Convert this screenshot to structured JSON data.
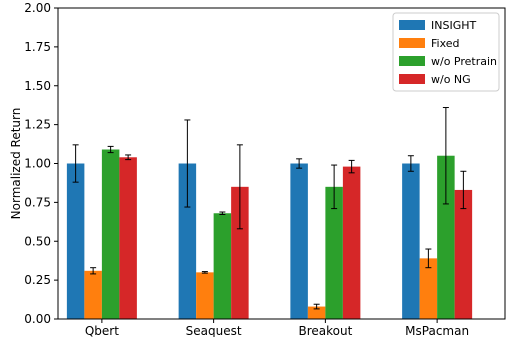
{
  "chart_data": {
    "type": "bar",
    "title": "",
    "xlabel": "",
    "ylabel": "Normalized Return",
    "ylim": [
      0,
      2.0
    ],
    "yticks": [
      "0.00",
      "0.25",
      "0.50",
      "0.75",
      "1.00",
      "1.25",
      "1.50",
      "1.75",
      "2.00"
    ],
    "categories": [
      "Qbert",
      "Seaquest",
      "Breakout",
      "MsPacman"
    ],
    "grid": false,
    "legend_position": "top-right",
    "series": [
      {
        "name": "INSIGHT",
        "color": "#1f77b4",
        "values": [
          1.0,
          1.0,
          1.0,
          1.0
        ],
        "errors": [
          0.12,
          0.28,
          0.03,
          0.05
        ]
      },
      {
        "name": "Fixed",
        "color": "#ff7f0e",
        "values": [
          0.31,
          0.3,
          0.08,
          0.39
        ],
        "errors": [
          0.02,
          0.005,
          0.015,
          0.06
        ]
      },
      {
        "name": "w/o Pretrain",
        "color": "#2ca02c",
        "values": [
          1.09,
          0.68,
          0.85,
          1.05
        ],
        "errors": [
          0.02,
          0.008,
          0.14,
          0.31
        ]
      },
      {
        "name": "w/o NG",
        "color": "#d62728",
        "values": [
          1.04,
          0.85,
          0.98,
          0.83
        ],
        "errors": [
          0.015,
          0.27,
          0.04,
          0.12
        ]
      }
    ]
  }
}
